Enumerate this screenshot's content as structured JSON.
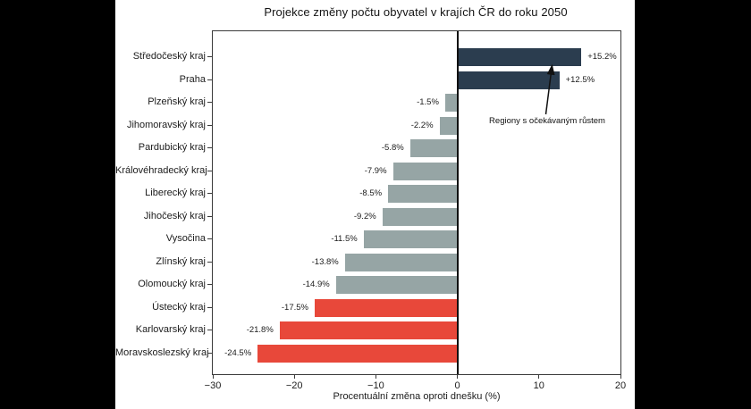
{
  "frame": {
    "background": "#000000",
    "panel_background": "#ffffff"
  },
  "chart_data": {
    "type": "bar",
    "orientation": "horizontal",
    "title": "Projekce změny počtu obyvatel v krajích ČR do roku 2050",
    "xlabel": "Procentuální změna oproti dnešku (%)",
    "xlim": [
      -30,
      20
    ],
    "grid": false,
    "legend": null,
    "zero_line": true,
    "x_ticks": [
      {
        "value": -30,
        "label": "−30"
      },
      {
        "value": -20,
        "label": "−20"
      },
      {
        "value": -10,
        "label": "−10"
      },
      {
        "value": 0,
        "label": "0"
      },
      {
        "value": 10,
        "label": "10"
      },
      {
        "value": 20,
        "label": "20"
      }
    ],
    "bars": [
      {
        "category": "Středočeský kraj",
        "value": 15.2,
        "label": "+15.2%",
        "group": "growth"
      },
      {
        "category": "Praha",
        "value": 12.5,
        "label": "+12.5%",
        "group": "growth"
      },
      {
        "category": "Plzeňský kraj",
        "value": -1.5,
        "label": "-1.5%",
        "group": "decline"
      },
      {
        "category": "Jihomoravský kraj",
        "value": -2.2,
        "label": "-2.2%",
        "group": "decline"
      },
      {
        "category": "Pardubický kraj",
        "value": -5.8,
        "label": "-5.8%",
        "group": "decline"
      },
      {
        "category": "Královéhradecký kraj",
        "value": -7.9,
        "label": "-7.9%",
        "group": "decline"
      },
      {
        "category": "Liberecký kraj",
        "value": -8.5,
        "label": "-8.5%",
        "group": "decline"
      },
      {
        "category": "Jihočeský kraj",
        "value": -9.2,
        "label": "-9.2%",
        "group": "decline"
      },
      {
        "category": "Vysočina",
        "value": -11.5,
        "label": "-11.5%",
        "group": "decline"
      },
      {
        "category": "Zlínský kraj",
        "value": -13.8,
        "label": "-13.8%",
        "group": "decline"
      },
      {
        "category": "Olomoucký kraj",
        "value": -14.9,
        "label": "-14.9%",
        "group": "decline"
      },
      {
        "category": "Ústecký kraj",
        "value": -17.5,
        "label": "-17.5%",
        "group": "severe"
      },
      {
        "category": "Karlovarský kraj",
        "value": -21.8,
        "label": "-21.8%",
        "group": "severe"
      },
      {
        "category": "Moravskoslezský kraj",
        "value": -24.5,
        "label": "-24.5%",
        "group": "severe"
      }
    ],
    "colors": {
      "growth": "#2b3d4f",
      "decline": "#96a5a5",
      "severe": "#e8483a",
      "axis": "#3a3a3a",
      "zero_line": "#111111",
      "text": "#1c1c1c"
    },
    "annotation": {
      "text": "Regiony s očekávaným růstem"
    }
  }
}
